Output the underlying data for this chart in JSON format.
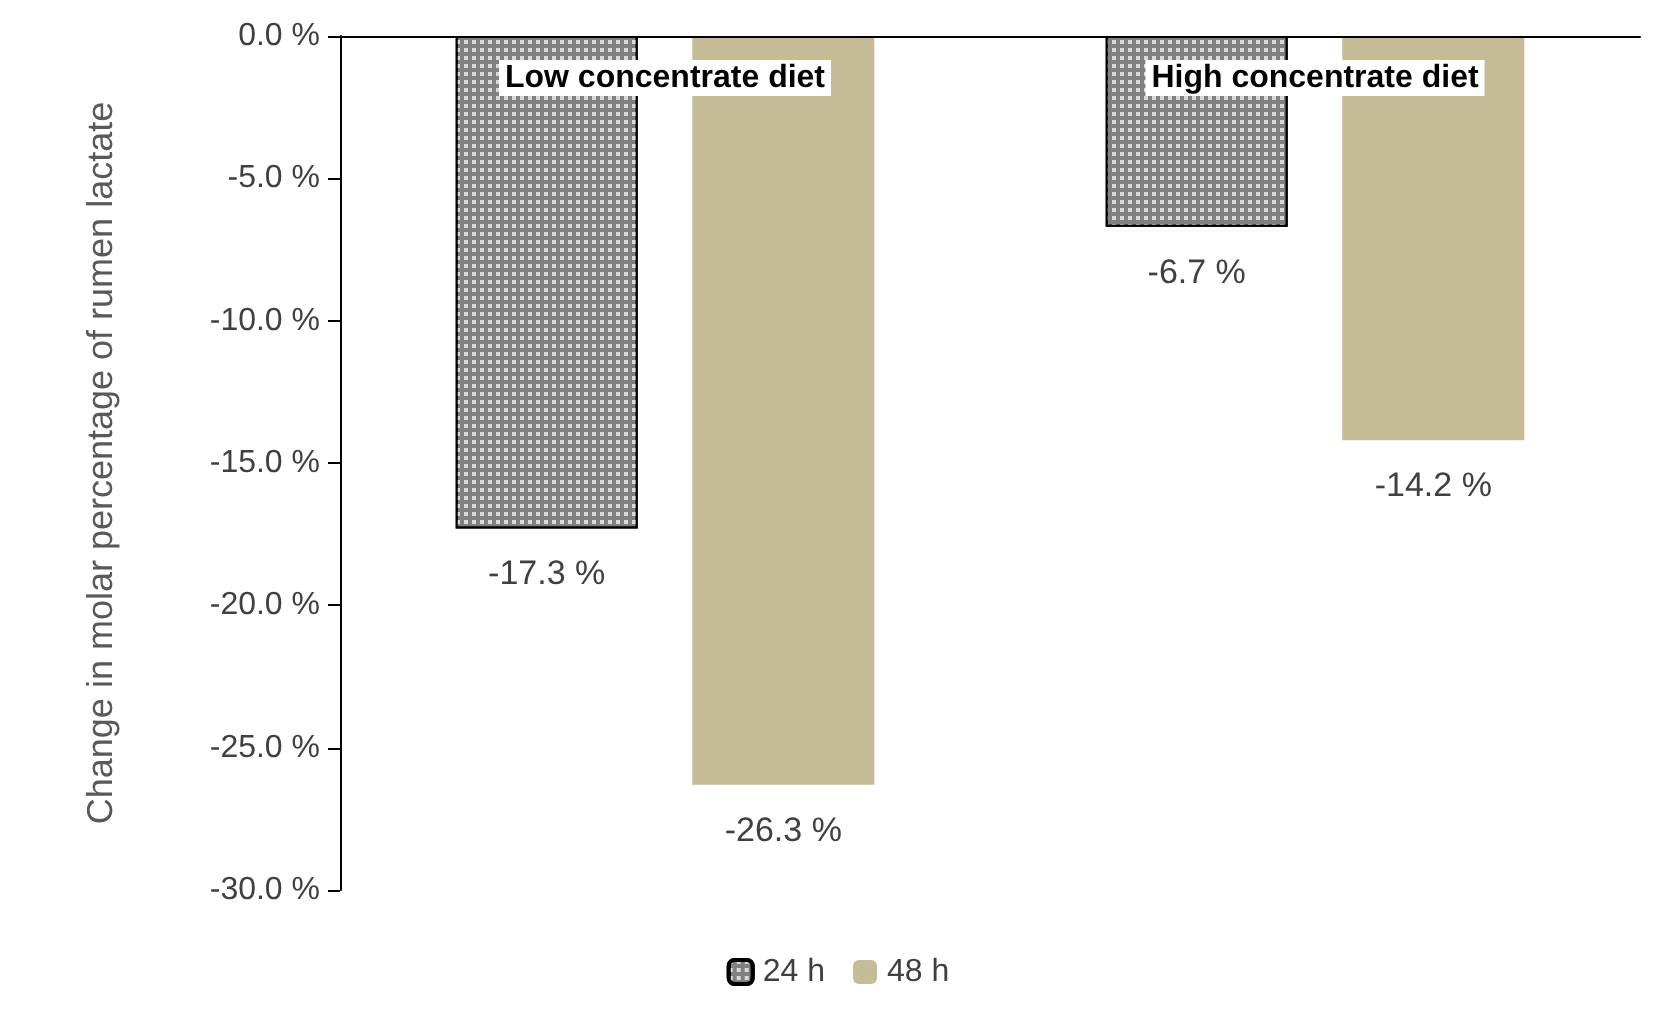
{
  "chart_data": {
    "type": "bar",
    "ylabel": "Change in molar percentage of rumen lactate",
    "categories": [
      "Low concentrate diet",
      "High concentrate diet"
    ],
    "series": [
      {
        "name": "24 h",
        "color": "#808080",
        "values": [
          -17.3,
          -6.7
        ],
        "value_labels": [
          "-17.3 %",
          "-6.7 %"
        ]
      },
      {
        "name": "48 h",
        "color": "#c4bc96",
        "values": [
          -26.3,
          -14.2
        ],
        "value_labels": [
          "-26.3 %",
          "-14.2 %"
        ]
      }
    ],
    "ylim": [
      -30,
      0
    ],
    "yticks": [
      {
        "value": -30,
        "label": "-30.0 %"
      },
      {
        "value": -25,
        "label": "-25.0 %"
      },
      {
        "value": -20,
        "label": "-20.0 %"
      },
      {
        "value": -15,
        "label": "-15.0 %"
      },
      {
        "value": -10,
        "label": "-10.0 %"
      },
      {
        "value": -5,
        "label": "-5.0 %"
      },
      {
        "value": 0,
        "label": "0.0 %"
      }
    ],
    "grid": false,
    "legend": "bottom"
  }
}
